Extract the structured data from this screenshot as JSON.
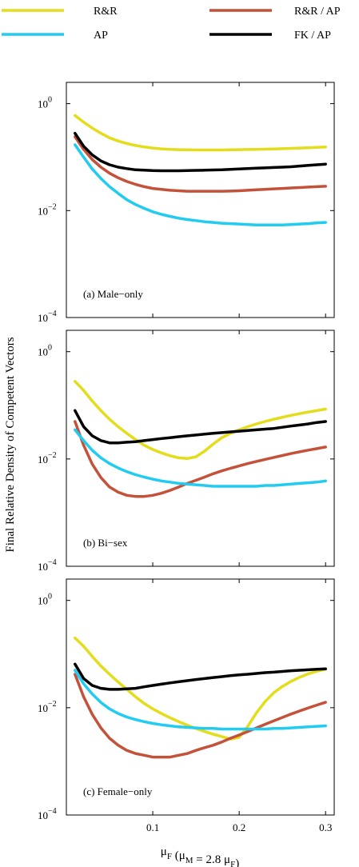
{
  "chart_data": {
    "type": "line",
    "y_scale": "log",
    "grid": false,
    "legend_placement": "top",
    "legend": [
      {
        "name": "R&R",
        "color": "#e3dd1b"
      },
      {
        "name": "R&R / AP",
        "color": "#c4523a"
      },
      {
        "name": "AP",
        "color": "#22ccf0"
      },
      {
        "name": "FK / AP",
        "color": "#000000"
      }
    ],
    "xlabel": {
      "main": "μ",
      "sub": "F",
      "rest": " (μ",
      "sub2": "M",
      "rest2": " = 2.8 μ",
      "sub3": "F",
      "end": ")"
    },
    "ylabel": "Final Relative Density of Competent Vectors",
    "xlim": [
      0,
      0.31
    ],
    "ylim": [
      0.0001,
      2.5
    ],
    "x_ticks": [
      0.1,
      0.2,
      0.3
    ],
    "x_tick_labels": [
      "0.1",
      "0.2",
      "0.3"
    ],
    "y_ticks": [
      0.0001,
      0.01,
      1
    ],
    "y_tick_labels": [
      {
        "base": "10",
        "exp": "−4"
      },
      {
        "base": "10",
        "exp": "−2"
      },
      {
        "base": "10",
        "exp": "0"
      }
    ],
    "x": [
      0.01,
      0.02,
      0.03,
      0.04,
      0.05,
      0.06,
      0.07,
      0.08,
      0.09,
      0.1,
      0.11,
      0.12,
      0.13,
      0.14,
      0.15,
      0.16,
      0.17,
      0.18,
      0.19,
      0.2,
      0.21,
      0.22,
      0.23,
      0.24,
      0.25,
      0.26,
      0.27,
      0.28,
      0.29,
      0.3
    ],
    "panels": [
      {
        "label": "(a) Male−only",
        "series": [
          {
            "name": "R&R",
            "values": [
              0.6,
              0.45,
              0.35,
              0.28,
              0.23,
              0.2,
              0.18,
              0.165,
              0.155,
              0.148,
              0.143,
              0.14,
              0.138,
              0.137,
              0.136,
              0.136,
              0.136,
              0.136,
              0.137,
              0.138,
              0.139,
              0.14,
              0.141,
              0.142,
              0.144,
              0.146,
              0.148,
              0.15,
              0.152,
              0.155
            ]
          },
          {
            "name": "R&R / AP",
            "values": [
              0.24,
              0.14,
              0.09,
              0.065,
              0.05,
              0.041,
              0.035,
              0.031,
              0.028,
              0.026,
              0.025,
              0.024,
              0.0235,
              0.023,
              0.023,
              0.023,
              0.023,
              0.023,
              0.0232,
              0.0235,
              0.024,
              0.0245,
              0.025,
              0.0255,
              0.026,
              0.0265,
              0.027,
              0.0275,
              0.028,
              0.0285
            ]
          },
          {
            "name": "AP",
            "values": [
              0.17,
              0.1,
              0.06,
              0.04,
              0.028,
              0.021,
              0.016,
              0.013,
              0.011,
              0.0095,
              0.0085,
              0.0078,
              0.0072,
              0.0068,
              0.0065,
              0.0062,
              0.006,
              0.0058,
              0.0057,
              0.0056,
              0.0055,
              0.0054,
              0.0054,
              0.0054,
              0.0054,
              0.0055,
              0.0056,
              0.0057,
              0.0059,
              0.006
            ]
          },
          {
            "name": "FK / AP",
            "values": [
              0.28,
              0.16,
              0.11,
              0.085,
              0.072,
              0.065,
              0.061,
              0.058,
              0.057,
              0.056,
              0.0555,
              0.0555,
              0.0555,
              0.056,
              0.0565,
              0.057,
              0.0575,
              0.058,
              0.059,
              0.06,
              0.061,
              0.062,
              0.063,
              0.064,
              0.065,
              0.066,
              0.068,
              0.07,
              0.072,
              0.074
            ]
          }
        ]
      },
      {
        "label": "(b) Bi−sex",
        "series": [
          {
            "name": "R&R",
            "values": [
              0.28,
              0.19,
              0.12,
              0.08,
              0.055,
              0.04,
              0.03,
              0.023,
              0.018,
              0.015,
              0.013,
              0.0115,
              0.0105,
              0.0102,
              0.011,
              0.014,
              0.019,
              0.025,
              0.03,
              0.035,
              0.04,
              0.045,
              0.05,
              0.055,
              0.06,
              0.065,
              0.07,
              0.075,
              0.08,
              0.085
            ]
          },
          {
            "name": "R&R / AP",
            "values": [
              0.05,
              0.018,
              0.008,
              0.0045,
              0.003,
              0.0024,
              0.0021,
              0.002,
              0.002,
              0.0021,
              0.0023,
              0.0026,
              0.003,
              0.0035,
              0.004,
              0.0046,
              0.0053,
              0.006,
              0.0067,
              0.0074,
              0.0082,
              0.009,
              0.0098,
              0.0107,
              0.0116,
              0.0126,
              0.0136,
              0.0146,
              0.0156,
              0.0167
            ]
          },
          {
            "name": "AP",
            "values": [
              0.035,
              0.022,
              0.0145,
              0.0105,
              0.0082,
              0.0068,
              0.0058,
              0.0051,
              0.0046,
              0.0042,
              0.0039,
              0.0037,
              0.0035,
              0.0034,
              0.0033,
              0.0032,
              0.0031,
              0.0031,
              0.0031,
              0.0031,
              0.0031,
              0.0031,
              0.0032,
              0.0032,
              0.0033,
              0.0034,
              0.0035,
              0.0036,
              0.0037,
              0.0039
            ]
          },
          {
            "name": "FK / AP",
            "values": [
              0.08,
              0.04,
              0.027,
              0.022,
              0.02,
              0.02,
              0.0205,
              0.021,
              0.022,
              0.023,
              0.024,
              0.025,
              0.026,
              0.027,
              0.028,
              0.029,
              0.03,
              0.031,
              0.032,
              0.033,
              0.034,
              0.035,
              0.036,
              0.037,
              0.039,
              0.041,
              0.043,
              0.045,
              0.048,
              0.05
            ]
          }
        ]
      },
      {
        "label": "(c) Female−only",
        "series": [
          {
            "name": "R&R",
            "values": [
              0.2,
              0.14,
              0.09,
              0.06,
              0.042,
              0.03,
              0.022,
              0.016,
              0.012,
              0.0095,
              0.0078,
              0.0065,
              0.0055,
              0.0047,
              0.0041,
              0.0036,
              0.0032,
              0.0029,
              0.0026,
              0.0028,
              0.0045,
              0.008,
              0.013,
              0.019,
              0.025,
              0.031,
              0.037,
              0.043,
              0.048,
              0.052
            ]
          },
          {
            "name": "R&R / AP",
            "values": [
              0.042,
              0.016,
              0.0075,
              0.0042,
              0.0027,
              0.002,
              0.0016,
              0.0014,
              0.0013,
              0.0012,
              0.0012,
              0.0012,
              0.0013,
              0.0014,
              0.0016,
              0.0018,
              0.002,
              0.0023,
              0.0027,
              0.0031,
              0.0036,
              0.0042,
              0.0049,
              0.0057,
              0.0066,
              0.0076,
              0.0087,
              0.0099,
              0.0112,
              0.0126
            ]
          },
          {
            "name": "AP",
            "values": [
              0.05,
              0.028,
              0.018,
              0.0125,
              0.0095,
              0.0078,
              0.0067,
              0.006,
              0.0055,
              0.0051,
              0.0048,
              0.0046,
              0.0044,
              0.0043,
              0.0042,
              0.0041,
              0.0041,
              0.004,
              0.004,
              0.004,
              0.004,
              0.004,
              0.004,
              0.0041,
              0.0041,
              0.0042,
              0.0043,
              0.0044,
              0.0045,
              0.0046
            ]
          },
          {
            "name": "FK / AP",
            "values": [
              0.065,
              0.035,
              0.026,
              0.023,
              0.022,
              0.022,
              0.0225,
              0.023,
              0.0245,
              0.026,
              0.0275,
              0.029,
              0.0305,
              0.032,
              0.0335,
              0.035,
              0.0365,
              0.038,
              0.0395,
              0.041,
              0.042,
              0.0435,
              0.045,
              0.046,
              0.0475,
              0.049,
              0.05,
              0.051,
              0.052,
              0.053
            ]
          }
        ]
      }
    ]
  }
}
